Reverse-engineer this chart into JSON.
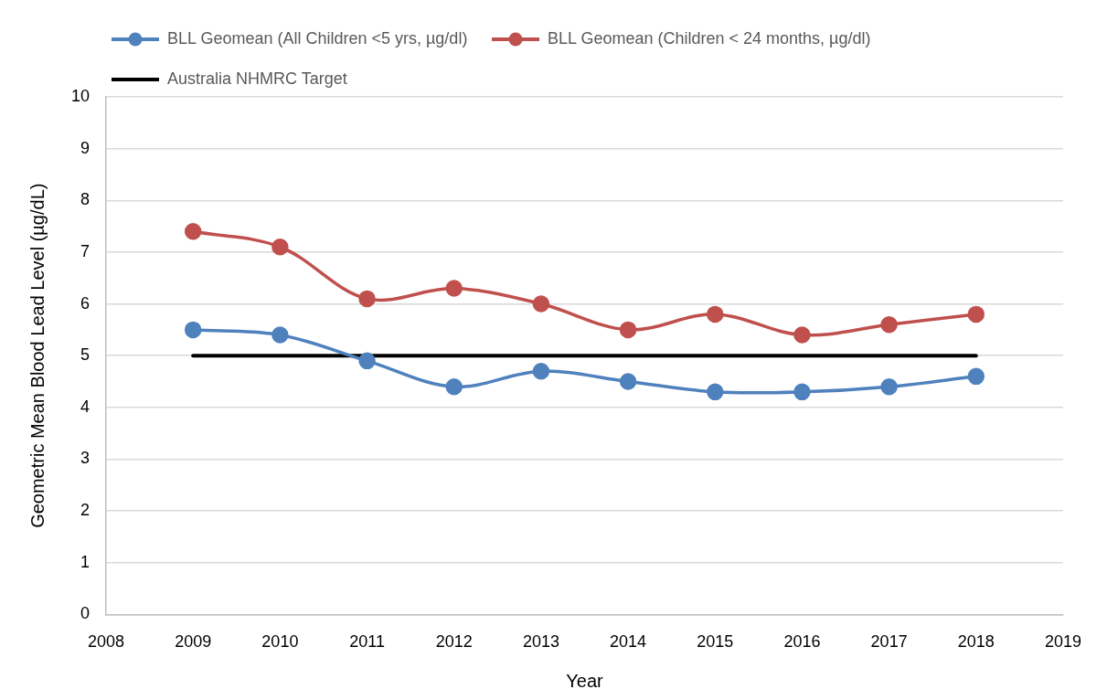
{
  "chart_data": {
    "type": "line",
    "xlabel": "Year",
    "ylabel": "Geometric Mean Blood Lead Level (µg/dL)",
    "x": [
      2009,
      2010,
      2011,
      2012,
      2013,
      2014,
      2015,
      2016,
      2017,
      2018
    ],
    "series": [
      {
        "name": "BLL Geomean (All Children <5 yrs, µg/dl)",
        "color": "#4f81bd",
        "values": [
          5.5,
          5.4,
          4.9,
          4.4,
          4.7,
          4.5,
          4.3,
          4.3,
          4.4,
          4.6
        ]
      },
      {
        "name": "BLL Geomean (Children < 24 months, µg/dl)",
        "color": "#c0504d",
        "values": [
          7.4,
          7.1,
          6.1,
          6.3,
          6.0,
          5.5,
          5.8,
          5.4,
          5.6,
          5.8
        ]
      },
      {
        "name": "Australia NHMRC Target",
        "color": "#000000",
        "x": [
          2009,
          2018
        ],
        "values": [
          5,
          5
        ],
        "marker": "none"
      }
    ],
    "xlim": [
      2008,
      2019
    ],
    "xticks": [
      2008,
      2009,
      2010,
      2011,
      2012,
      2013,
      2014,
      2015,
      2016,
      2017,
      2018,
      2019
    ],
    "ylim": [
      0,
      10
    ],
    "yticks": [
      0,
      1,
      2,
      3,
      4,
      5,
      6,
      7,
      8,
      9,
      10
    ],
    "grid": "y",
    "legend": "top",
    "marker": "circle",
    "line_style": "solid"
  }
}
